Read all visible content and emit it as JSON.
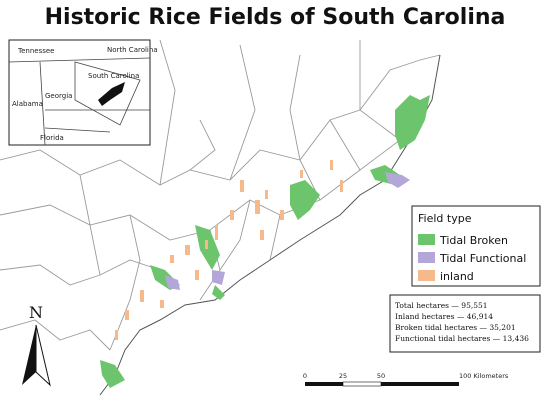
{
  "title": "Historic Rice Fields of South Carolina",
  "inset": {
    "labels": [
      "Tennessee",
      "North Carolina",
      "South Carolina",
      "Georgia",
      "Alabama",
      "Florida"
    ]
  },
  "legend": {
    "title": "Field type",
    "items": [
      {
        "label": "Tidal Broken",
        "color": "#6cc46c"
      },
      {
        "label": "Tidal Functional",
        "color": "#b3a6d8"
      },
      {
        "label": "inland",
        "color": "#f6b98b"
      }
    ]
  },
  "stats": [
    "Total hectares — 95,551",
    "Inland hectares — 46,914",
    "Broken tidal hectares — 35,201",
    "Functional tidal hectares — 13,436"
  ],
  "north": "N",
  "scale_bar": [
    "0",
    "25",
    "50",
    "100 Kilometers"
  ]
}
